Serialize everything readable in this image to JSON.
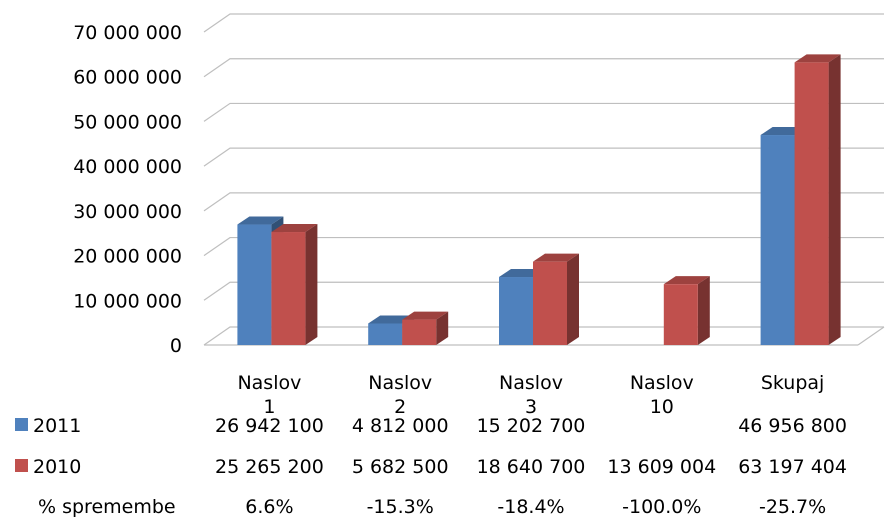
{
  "chart_data": {
    "type": "bar",
    "title": "",
    "xlabel": "",
    "ylabel": "",
    "ylim": [
      0,
      70000000
    ],
    "yticks": [
      0,
      10000000,
      20000000,
      30000000,
      40000000,
      50000000,
      60000000,
      70000000
    ],
    "ytick_labels": [
      "0",
      "10 000 000",
      "20 000 000",
      "30 000 000",
      "40 000 000",
      "50 000 000",
      "60 000 000",
      "70 000 000"
    ],
    "categories": [
      [
        "Naslov",
        "1"
      ],
      [
        "Naslov",
        "2"
      ],
      [
        "Naslov",
        "3"
      ],
      [
        "Naslov",
        "10"
      ],
      [
        "Skupaj"
      ]
    ],
    "series": [
      {
        "name": "2011",
        "color": "#4f81bd",
        "values": [
          26942100,
          4812000,
          15202700,
          0,
          46956800
        ],
        "labels": [
          "26 942 100",
          "4 812 000",
          "15 202 700",
          "",
          "46 956 800"
        ]
      },
      {
        "name": "2010",
        "color": "#c0504d",
        "values": [
          25265200,
          5682500,
          18640700,
          13609004,
          63197404
        ],
        "labels": [
          "25 265 200",
          "5 682 500",
          "18 640 700",
          "13 609 004",
          "63 197 404"
        ]
      }
    ],
    "table_row_label": "% spremembe",
    "change": [
      "6.6%",
      "-15.3%",
      "-18.4%",
      "-100.0%",
      "-25.7%"
    ],
    "grid": true,
    "style": "3d-clustered-column",
    "legend": "data-table"
  }
}
